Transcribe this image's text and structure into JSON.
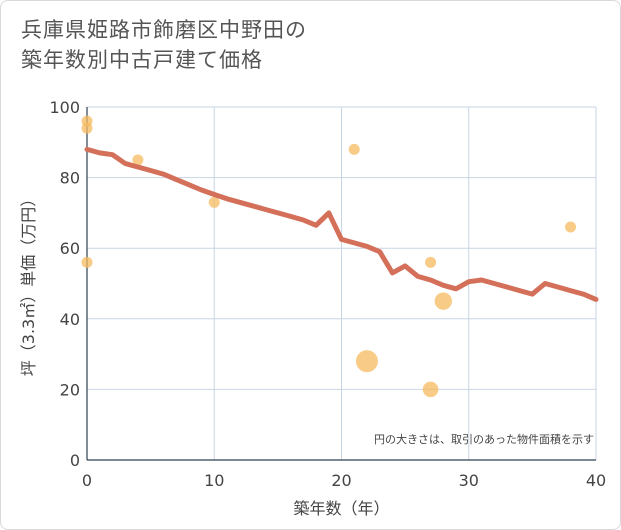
{
  "chart_data": {
    "type": "scatter",
    "title_lines": [
      "兵庫県姫路市飾磨区中野田の",
      "築年数別中古戸建て価格"
    ],
    "xlabel": "築年数（年）",
    "ylabel": "坪（3.3㎡）単価（万円）",
    "xlim": [
      0,
      40
    ],
    "ylim": [
      0,
      100
    ],
    "xticks": [
      0,
      10,
      20,
      30,
      40
    ],
    "yticks": [
      0,
      20,
      40,
      60,
      80,
      100
    ],
    "grid": true,
    "note": "円の大きさは、取引のあった物件面積を示す",
    "colors": {
      "points": "#f5b95f",
      "trend": "#d4705a"
    },
    "points": [
      {
        "x": 0,
        "y": 96,
        "size": 1
      },
      {
        "x": 0,
        "y": 94,
        "size": 1
      },
      {
        "x": 0,
        "y": 56,
        "size": 1
      },
      {
        "x": 4,
        "y": 85,
        "size": 1
      },
      {
        "x": 10,
        "y": 73,
        "size": 1
      },
      {
        "x": 21,
        "y": 88,
        "size": 1
      },
      {
        "x": 22,
        "y": 28,
        "size": 4
      },
      {
        "x": 27,
        "y": 56,
        "size": 1
      },
      {
        "x": 27,
        "y": 20,
        "size": 2
      },
      {
        "x": 28,
        "y": 45,
        "size": 2.5
      },
      {
        "x": 38,
        "y": 66,
        "size": 1
      }
    ],
    "trend": [
      {
        "x": 0,
        "y": 88
      },
      {
        "x": 1,
        "y": 87
      },
      {
        "x": 2,
        "y": 86.5
      },
      {
        "x": 3,
        "y": 84
      },
      {
        "x": 4,
        "y": 83
      },
      {
        "x": 5,
        "y": 82
      },
      {
        "x": 6,
        "y": 81
      },
      {
        "x": 7,
        "y": 79.5
      },
      {
        "x": 8,
        "y": 78
      },
      {
        "x": 9,
        "y": 76.5
      },
      {
        "x": 10,
        "y": 75.2
      },
      {
        "x": 11,
        "y": 74
      },
      {
        "x": 12,
        "y": 73
      },
      {
        "x": 13,
        "y": 72
      },
      {
        "x": 14,
        "y": 71
      },
      {
        "x": 15,
        "y": 70
      },
      {
        "x": 16,
        "y": 69
      },
      {
        "x": 17,
        "y": 68
      },
      {
        "x": 18,
        "y": 66.5
      },
      {
        "x": 19,
        "y": 70
      },
      {
        "x": 20,
        "y": 62.5
      },
      {
        "x": 21,
        "y": 61.5
      },
      {
        "x": 22,
        "y": 60.5
      },
      {
        "x": 23,
        "y": 59
      },
      {
        "x": 24,
        "y": 53
      },
      {
        "x": 25,
        "y": 55
      },
      {
        "x": 26,
        "y": 52
      },
      {
        "x": 27,
        "y": 51
      },
      {
        "x": 28,
        "y": 49.5
      },
      {
        "x": 29,
        "y": 48.5
      },
      {
        "x": 30,
        "y": 50.5
      },
      {
        "x": 31,
        "y": 51
      },
      {
        "x": 32,
        "y": 50
      },
      {
        "x": 33,
        "y": 49
      },
      {
        "x": 34,
        "y": 48
      },
      {
        "x": 35,
        "y": 47
      },
      {
        "x": 36,
        "y": 50
      },
      {
        "x": 37,
        "y": 49
      },
      {
        "x": 38,
        "y": 48
      },
      {
        "x": 39,
        "y": 47
      },
      {
        "x": 40,
        "y": 45.5
      }
    ]
  }
}
